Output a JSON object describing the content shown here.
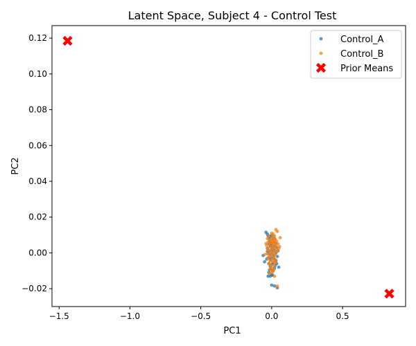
{
  "chart_data": {
    "type": "scatter",
    "title": "Latent Space, Subject 4 - Control Test",
    "xlabel": "PC1",
    "ylabel": "PC2",
    "xlim": [
      -1.55,
      0.945
    ],
    "ylim": [
      -0.03,
      0.127
    ],
    "xticks": [
      -1.5,
      -1.0,
      -0.5,
      0.0,
      0.5
    ],
    "xtick_labels": [
      "−1.5",
      "−1.0",
      "−0.5",
      "0.0",
      "0.5"
    ],
    "yticks": [
      -0.02,
      0.0,
      0.02,
      0.04,
      0.06,
      0.08,
      0.1,
      0.12
    ],
    "ytick_labels": [
      "−0.02",
      "0.00",
      "0.02",
      "0.04",
      "0.06",
      "0.08",
      "0.10",
      "0.12"
    ],
    "grid": false,
    "legend_position": "top-right",
    "series": [
      {
        "name": "Control_A",
        "color": "#1f77b4",
        "marker": "circle",
        "points": [
          [
            -0.04,
            0.0115
          ],
          [
            -0.03,
            0.0105
          ],
          [
            -0.025,
            0.0095
          ],
          [
            -0.02,
            0.008
          ],
          [
            -0.01,
            0.009
          ],
          [
            0.0,
            0.01
          ],
          [
            0.01,
            0.009
          ],
          [
            0.02,
            0.008
          ],
          [
            0.005,
            0.0075
          ],
          [
            -0.015,
            0.0065
          ],
          [
            -0.005,
            0.006
          ],
          [
            0.015,
            0.006
          ],
          [
            0.03,
            0.0055
          ],
          [
            -0.02,
            0.005
          ],
          [
            0.0,
            0.0045
          ],
          [
            0.02,
            0.004
          ],
          [
            -0.01,
            0.0035
          ],
          [
            0.01,
            0.003
          ],
          [
            0.035,
            0.003
          ],
          [
            -0.03,
            0.0025
          ],
          [
            0.0,
            0.002
          ],
          [
            0.02,
            0.0015
          ],
          [
            -0.015,
            0.001
          ],
          [
            0.005,
            0.0005
          ],
          [
            0.03,
            0.0
          ],
          [
            -0.025,
            -0.0005
          ],
          [
            -0.005,
            -0.001
          ],
          [
            0.015,
            -0.0012
          ],
          [
            -0.06,
            -0.0015
          ],
          [
            0.04,
            -0.002
          ],
          [
            -0.02,
            -0.0025
          ],
          [
            0.0,
            -0.003
          ],
          [
            0.02,
            -0.0035
          ],
          [
            -0.01,
            -0.004
          ],
          [
            0.03,
            -0.0045
          ],
          [
            -0.05,
            -0.005
          ],
          [
            0.01,
            -0.0055
          ],
          [
            -0.02,
            -0.006
          ],
          [
            0.0,
            -0.0065
          ],
          [
            0.025,
            -0.007
          ],
          [
            -0.01,
            -0.0075
          ],
          [
            0.05,
            -0.008
          ],
          [
            0.02,
            -0.0085
          ],
          [
            -0.005,
            -0.009
          ],
          [
            -0.015,
            -0.0095
          ],
          [
            0.01,
            -0.01
          ],
          [
            -0.02,
            -0.011
          ],
          [
            0.0,
            -0.012
          ],
          [
            -0.025,
            -0.013
          ],
          [
            -0.01,
            -0.013
          ],
          [
            0.005,
            -0.0125
          ],
          [
            0.0,
            -0.018
          ],
          [
            0.02,
            -0.0185
          ],
          [
            0.04,
            -0.0195
          ],
          [
            -0.03,
            0.0008
          ],
          [
            0.045,
            0.0012
          ],
          [
            -0.035,
            -0.0035
          ],
          [
            0.035,
            -0.006
          ],
          [
            -0.008,
            0.0042
          ],
          [
            0.012,
            -0.0025
          ]
        ]
      },
      {
        "name": "Control_B",
        "color": "#ff7f0e",
        "marker": "circle",
        "points": [
          [
            0.03,
            0.013
          ],
          [
            0.04,
            0.012
          ],
          [
            0.0,
            0.011
          ],
          [
            0.01,
            0.0105
          ],
          [
            -0.02,
            0.0095
          ],
          [
            0.02,
            0.0095
          ],
          [
            0.06,
            0.0085
          ],
          [
            -0.03,
            0.008
          ],
          [
            0.005,
            0.008
          ],
          [
            0.025,
            0.0075
          ],
          [
            -0.01,
            0.007
          ],
          [
            0.015,
            0.007
          ],
          [
            0.035,
            0.0065
          ],
          [
            -0.025,
            0.006
          ],
          [
            0.0,
            0.006
          ],
          [
            0.02,
            0.0055
          ],
          [
            0.045,
            0.005
          ],
          [
            -0.015,
            0.005
          ],
          [
            0.01,
            0.0045
          ],
          [
            -0.035,
            0.004
          ],
          [
            0.03,
            0.004
          ],
          [
            0.055,
            0.0035
          ],
          [
            -0.005,
            0.0035
          ],
          [
            0.015,
            0.003
          ],
          [
            -0.03,
            0.0025
          ],
          [
            0.035,
            0.002
          ],
          [
            0.0,
            0.002
          ],
          [
            -0.02,
            0.0015
          ],
          [
            0.02,
            0.001
          ],
          [
            0.04,
            0.0008
          ],
          [
            -0.01,
            0.0005
          ],
          [
            0.01,
            0.0
          ],
          [
            -0.025,
            -0.0005
          ],
          [
            0.025,
            -0.001
          ],
          [
            0.0,
            -0.0015
          ],
          [
            -0.015,
            -0.002
          ],
          [
            0.015,
            -0.0025
          ],
          [
            -0.03,
            -0.003
          ],
          [
            0.005,
            -0.0035
          ],
          [
            0.03,
            -0.004
          ],
          [
            -0.01,
            -0.0045
          ],
          [
            0.01,
            -0.005
          ],
          [
            -0.02,
            -0.006
          ],
          [
            0.02,
            -0.007
          ],
          [
            0.0,
            -0.008
          ],
          [
            -0.01,
            -0.009
          ],
          [
            0.015,
            -0.0095
          ],
          [
            -0.005,
            -0.01
          ],
          [
            0.005,
            -0.011
          ],
          [
            -0.015,
            -0.0115
          ],
          [
            0.02,
            -0.013
          ],
          [
            0.04,
            -0.0185
          ],
          [
            0.0,
            0.0068
          ],
          [
            -0.04,
            0.0052
          ],
          [
            0.05,
            0.0025
          ],
          [
            -0.045,
            -0.0008
          ],
          [
            0.008,
            0.0088
          ],
          [
            -0.008,
            -0.0068
          ],
          [
            0.028,
            -0.0052
          ],
          [
            0.012,
            0.0062
          ]
        ]
      },
      {
        "name": "Prior Means",
        "color": "#ff0000",
        "marker": "x",
        "points": [
          [
            -1.44,
            0.1185
          ],
          [
            0.83,
            -0.0228
          ]
        ]
      }
    ]
  }
}
